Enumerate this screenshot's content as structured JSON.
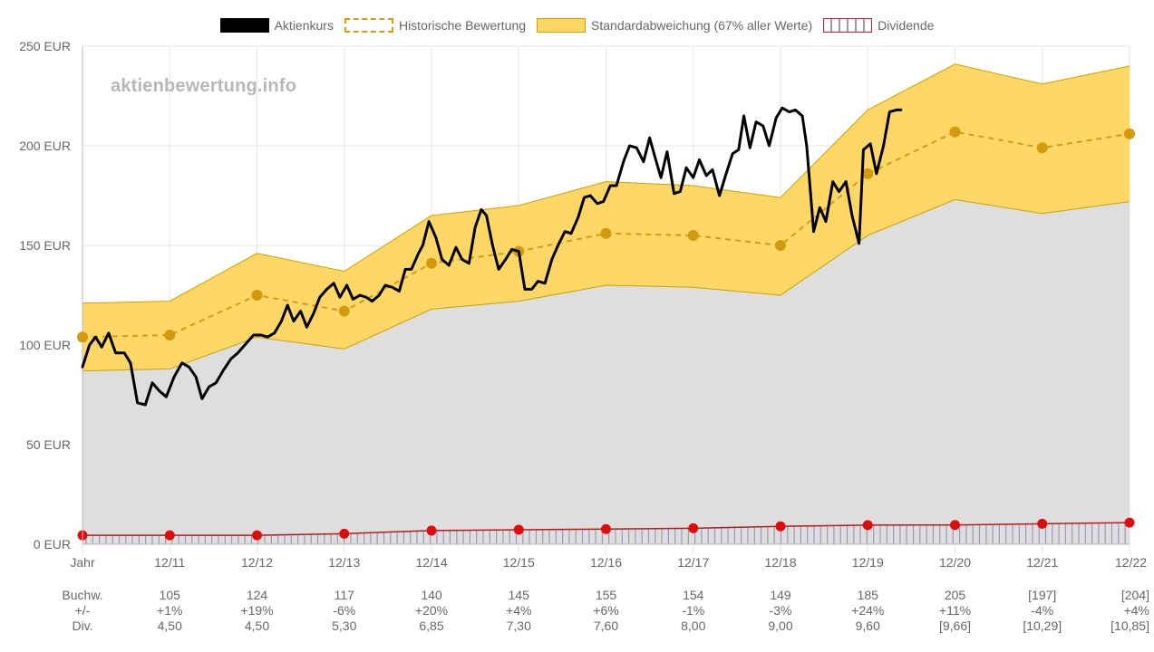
{
  "legend": {
    "price": "Aktienkurs",
    "hist": "Historische Bewertung",
    "std": "Standardabweichung (67% aller Werte)",
    "div": "Dividende"
  },
  "watermark": "aktienbewertung.info",
  "colors": {
    "price": "#000000",
    "hist": "#d49b1a",
    "std_fill": "#fed766",
    "std_line": "#c9a200",
    "gray_area": "#dedede",
    "div_line": "#b51c1c",
    "div_point": "#dd0d0d"
  },
  "chart_data": {
    "type": "line",
    "ylim": [
      0,
      250
    ],
    "yticks": [
      "0 EUR",
      "50 EUR",
      "100 EUR",
      "150 EUR",
      "200 EUR",
      "250 EUR"
    ],
    "x_labels": [
      "Jahr",
      "12/11",
      "12/12",
      "12/13",
      "12/14",
      "12/15",
      "12/16",
      "12/17",
      "12/18",
      "12/19",
      "12/20",
      "12/21",
      "12/22"
    ],
    "historische_bewertung": [
      104,
      105,
      125,
      117,
      141,
      147,
      156,
      155,
      150,
      186,
      207,
      199,
      206
    ],
    "std_upper": [
      121,
      122,
      146,
      137,
      165,
      170,
      182,
      180,
      174,
      218,
      241,
      231,
      240
    ],
    "std_lower": [
      87,
      88,
      104,
      98,
      118,
      122,
      130,
      129,
      125,
      155,
      173,
      166,
      172
    ],
    "dividende": [
      4.5,
      4.5,
      4.5,
      5.3,
      6.85,
      7.3,
      7.6,
      8.0,
      9.0,
      9.6,
      9.66,
      10.29,
      10.85
    ],
    "aktienkurs": [
      [
        0.0,
        89
      ],
      [
        0.08,
        100
      ],
      [
        0.15,
        104
      ],
      [
        0.22,
        99
      ],
      [
        0.3,
        106
      ],
      [
        0.38,
        96
      ],
      [
        0.48,
        96
      ],
      [
        0.55,
        91
      ],
      [
        0.63,
        71
      ],
      [
        0.72,
        70
      ],
      [
        0.8,
        81
      ],
      [
        0.88,
        77
      ],
      [
        0.96,
        74
      ],
      [
        1.05,
        84
      ],
      [
        1.14,
        91
      ],
      [
        1.22,
        89
      ],
      [
        1.3,
        84
      ],
      [
        1.37,
        73
      ],
      [
        1.45,
        79
      ],
      [
        1.53,
        81
      ],
      [
        1.61,
        87
      ],
      [
        1.7,
        93
      ],
      [
        1.78,
        96
      ],
      [
        1.88,
        101
      ],
      [
        1.96,
        105
      ],
      [
        2.05,
        105
      ],
      [
        2.12,
        104
      ],
      [
        2.2,
        106
      ],
      [
        2.28,
        112
      ],
      [
        2.35,
        120
      ],
      [
        2.42,
        112
      ],
      [
        2.5,
        117
      ],
      [
        2.57,
        109
      ],
      [
        2.65,
        116
      ],
      [
        2.72,
        124
      ],
      [
        2.8,
        128
      ],
      [
        2.88,
        131
      ],
      [
        2.95,
        124
      ],
      [
        3.03,
        130
      ],
      [
        3.1,
        123
      ],
      [
        3.18,
        125
      ],
      [
        3.25,
        124
      ],
      [
        3.32,
        122
      ],
      [
        3.4,
        125
      ],
      [
        3.47,
        130
      ],
      [
        3.55,
        129
      ],
      [
        3.63,
        127
      ],
      [
        3.7,
        138
      ],
      [
        3.77,
        138
      ],
      [
        3.85,
        146
      ],
      [
        3.9,
        150
      ],
      [
        3.97,
        162
      ],
      [
        4.05,
        154
      ],
      [
        4.12,
        143
      ],
      [
        4.2,
        140
      ],
      [
        4.28,
        149
      ],
      [
        4.35,
        143
      ],
      [
        4.43,
        141
      ],
      [
        4.5,
        159
      ],
      [
        4.57,
        168
      ],
      [
        4.63,
        165
      ],
      [
        4.7,
        150
      ],
      [
        4.77,
        138
      ],
      [
        4.85,
        143
      ],
      [
        4.92,
        148
      ],
      [
        5.0,
        147
      ],
      [
        5.07,
        128
      ],
      [
        5.15,
        128
      ],
      [
        5.22,
        132
      ],
      [
        5.3,
        131
      ],
      [
        5.38,
        143
      ],
      [
        5.45,
        150
      ],
      [
        5.53,
        157
      ],
      [
        5.6,
        156
      ],
      [
        5.68,
        164
      ],
      [
        5.75,
        174
      ],
      [
        5.82,
        175
      ],
      [
        5.9,
        171
      ],
      [
        5.97,
        172
      ],
      [
        6.05,
        180
      ],
      [
        6.12,
        180
      ],
      [
        6.2,
        192
      ],
      [
        6.27,
        200
      ],
      [
        6.35,
        199
      ],
      [
        6.43,
        192
      ],
      [
        6.5,
        204
      ],
      [
        6.57,
        193
      ],
      [
        6.63,
        184
      ],
      [
        6.7,
        197
      ],
      [
        6.78,
        176
      ],
      [
        6.85,
        177
      ],
      [
        6.92,
        189
      ],
      [
        7.0,
        184
      ],
      [
        7.07,
        193
      ],
      [
        7.15,
        185
      ],
      [
        7.22,
        188
      ],
      [
        7.3,
        175
      ],
      [
        7.37,
        185
      ],
      [
        7.45,
        196
      ],
      [
        7.52,
        198
      ],
      [
        7.58,
        215
      ],
      [
        7.65,
        199
      ],
      [
        7.72,
        212
      ],
      [
        7.8,
        210
      ],
      [
        7.87,
        200
      ],
      [
        7.95,
        214
      ],
      [
        8.02,
        219
      ],
      [
        8.1,
        217
      ],
      [
        8.17,
        218
      ],
      [
        8.25,
        215
      ],
      [
        8.3,
        200
      ],
      [
        8.38,
        157
      ],
      [
        8.45,
        169
      ],
      [
        8.52,
        162
      ],
      [
        8.6,
        182
      ],
      [
        8.67,
        177
      ],
      [
        8.75,
        182
      ],
      [
        8.82,
        165
      ],
      [
        8.9,
        151
      ],
      [
        8.95,
        198
      ],
      [
        9.03,
        201
      ],
      [
        9.1,
        186
      ],
      [
        9.18,
        200
      ],
      [
        9.25,
        217
      ],
      [
        9.33,
        218
      ],
      [
        9.38,
        218
      ]
    ]
  },
  "table": {
    "rows": [
      {
        "label": "Buchw.",
        "values": [
          "105",
          "124",
          "117",
          "140",
          "145",
          "155",
          "154",
          "149",
          "185",
          "205",
          "[197]",
          "[204]"
        ]
      },
      {
        "label": "+/-",
        "values": [
          "+1%",
          "+19%",
          "-6%",
          "+20%",
          "+4%",
          "+6%",
          "-1%",
          "-3%",
          "+24%",
          "+11%",
          "-4%",
          "+4%"
        ]
      },
      {
        "label": "Div.",
        "values": [
          "4,50",
          "4,50",
          "5,30",
          "6,85",
          "7,30",
          "7,60",
          "8,00",
          "9,00",
          "9,60",
          "[9,66]",
          "[10,29]",
          "[10,85]"
        ]
      }
    ]
  }
}
